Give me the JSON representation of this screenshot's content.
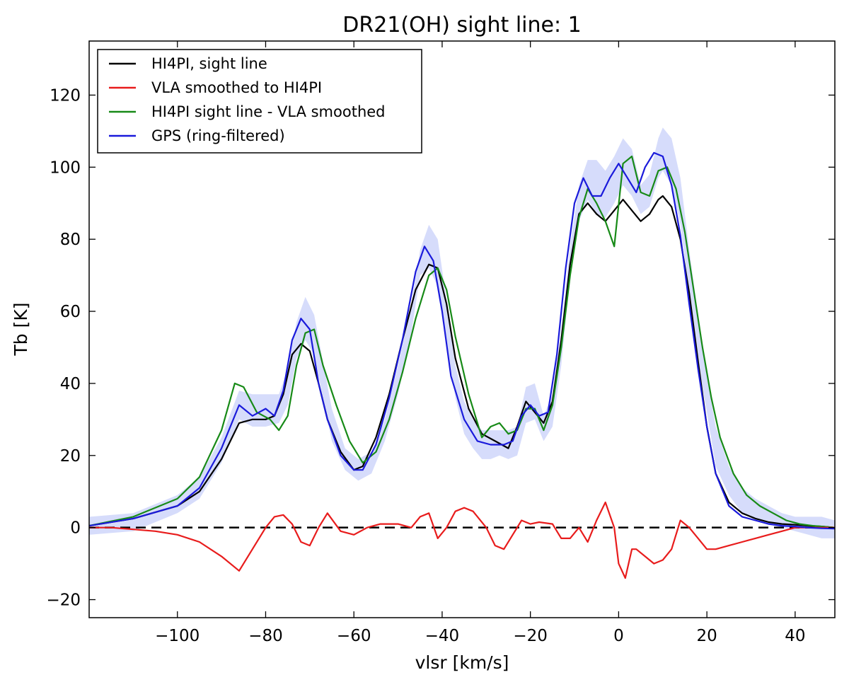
{
  "chart_data": {
    "type": "line",
    "title": "DR21(OH) sight line: 1",
    "xlabel": "vlsr [km/s]",
    "ylabel": "Tb [K]",
    "xlim": [
      -120,
      49
    ],
    "ylim": [
      -25,
      135
    ],
    "xticks": [
      -100,
      -80,
      -60,
      -40,
      -20,
      0,
      20,
      40
    ],
    "xtick_labels": [
      "−100",
      "−80",
      "−60",
      "−40",
      "−20",
      "0",
      "20",
      "40"
    ],
    "yticks": [
      -20,
      0,
      20,
      40,
      60,
      80,
      100,
      120
    ],
    "ytick_labels": [
      "−20",
      "0",
      "20",
      "40",
      "60",
      "80",
      "100",
      "120"
    ],
    "legend_position": "top-left",
    "zero_line": {
      "y": 0,
      "style": "dashed",
      "color": "#000000"
    },
    "band": {
      "name": "GPS uncertainty",
      "color": "#d6dcfb",
      "x": [
        -120,
        -110,
        -100,
        -95,
        -90,
        -86,
        -83,
        -80,
        -77,
        -75,
        -73,
        -71,
        -69,
        -67,
        -65,
        -62,
        -59,
        -56,
        -53,
        -50,
        -47,
        -45,
        -43,
        -41,
        -39,
        -37,
        -35,
        -33,
        -31,
        -29,
        -27,
        -25,
        -23,
        -21,
        -19,
        -17,
        -15,
        -13,
        -11,
        -9,
        -7,
        -5,
        -3,
        -1,
        1,
        3,
        5,
        7,
        9,
        10,
        12,
        14,
        16,
        18,
        20,
        22,
        25,
        28,
        31,
        34,
        37,
        40,
        43,
        46,
        49
      ],
      "upper": [
        3,
        4,
        9,
        14,
        25,
        38,
        37,
        37,
        37,
        44,
        57,
        64,
        59,
        46,
        33,
        22,
        19,
        21,
        30,
        45,
        62,
        77,
        84,
        80,
        63,
        45,
        35,
        30,
        27,
        27,
        27,
        27,
        28,
        39,
        40,
        31,
        37,
        55,
        78,
        95,
        102,
        102,
        99,
        103,
        108,
        105,
        95,
        98,
        108,
        111,
        108,
        97,
        77,
        59,
        42,
        28,
        17,
        11,
        8,
        6,
        4,
        3,
        3,
        3,
        2
      ],
      "lower": [
        -2,
        -1,
        4,
        8,
        18,
        30,
        28,
        28,
        29,
        34,
        47,
        52,
        48,
        36,
        24,
        16,
        13,
        15,
        24,
        37,
        54,
        70,
        72,
        67,
        52,
        36,
        26,
        22,
        19,
        19,
        20,
        19,
        20,
        29,
        30,
        24,
        28,
        45,
        70,
        85,
        91,
        87,
        86,
        90,
        95,
        92,
        87,
        89,
        97,
        99,
        95,
        84,
        65,
        46,
        32,
        17,
        9,
        4,
        2,
        1,
        0,
        -1,
        -2,
        -3,
        -3
      ]
    },
    "series": [
      {
        "name": "HI4PI, sight line",
        "color": "#000000",
        "x": [
          -120,
          -110,
          -100,
          -95,
          -90,
          -86,
          -83,
          -80,
          -78,
          -76,
          -74,
          -72,
          -70,
          -68,
          -66,
          -63,
          -60,
          -58,
          -55,
          -52,
          -49,
          -46,
          -43,
          -41,
          -39,
          -37,
          -34,
          -31,
          -28,
          -25,
          -23,
          -21,
          -19,
          -17,
          -15,
          -13,
          -11,
          -9,
          -7,
          -5,
          -3,
          -1,
          1,
          3,
          5,
          7,
          9,
          10,
          12,
          14,
          16,
          18,
          20,
          22,
          25,
          28,
          31,
          34,
          37,
          40,
          43,
          46,
          49
        ],
        "values": [
          0.5,
          2.5,
          6,
          10,
          19,
          29,
          30,
          30,
          31,
          37,
          48,
          51,
          49,
          40,
          30,
          21,
          16,
          17,
          25,
          37,
          52,
          66,
          73,
          72,
          62,
          47,
          33,
          26,
          24,
          22,
          28,
          35,
          32,
          29,
          35,
          52,
          73,
          87,
          90,
          87,
          85,
          88,
          91,
          88,
          85,
          87,
          91,
          92,
          89,
          80,
          65,
          46,
          28,
          15,
          7,
          4,
          2.5,
          1.5,
          1,
          0.8,
          0.5,
          0.3,
          0
        ]
      },
      {
        "name": "VLA smoothed to HI4PI",
        "color": "#e81c1c",
        "x": [
          -120,
          -115,
          -110,
          -105,
          -100,
          -95,
          -90,
          -86,
          -83,
          -80,
          -78,
          -76,
          -74,
          -72,
          -70,
          -68,
          -66,
          -63,
          -60,
          -57,
          -54,
          -50,
          -47,
          -45,
          -43,
          -41,
          -39,
          -37,
          -35,
          -33,
          -30,
          -28,
          -26,
          -24,
          -22,
          -20,
          -18,
          -15,
          -13,
          -11,
          -9,
          -7,
          -5,
          -3,
          -1,
          0,
          1.5,
          3,
          4,
          6,
          8,
          10,
          12,
          14,
          16,
          18,
          20,
          22,
          25,
          28,
          31,
          34,
          37,
          40,
          43,
          46,
          49
        ],
        "values": [
          0,
          0,
          -0.5,
          -1,
          -2,
          -4,
          -8,
          -12,
          -6,
          0,
          3,
          3.5,
          1,
          -4,
          -5,
          0,
          4,
          -1,
          -2,
          0,
          1,
          1,
          0,
          3,
          4,
          -3,
          0,
          4.5,
          5.5,
          4.5,
          0,
          -5,
          -6,
          -2,
          2,
          1,
          1.5,
          1,
          -3,
          -3,
          0,
          -4,
          2,
          7,
          0,
          -10,
          -14,
          -6,
          -6,
          -8,
          -10,
          -9,
          -6,
          2,
          0,
          -3,
          -6,
          -6,
          -5,
          -4,
          -3,
          -2,
          -1,
          0,
          0,
          0,
          0
        ]
      },
      {
        "name": "HI4PI sight line - VLA smoothed",
        "color": "#178a17",
        "x": [
          -120,
          -110,
          -100,
          -95,
          -90,
          -87,
          -85,
          -82,
          -79,
          -77,
          -75,
          -73,
          -71,
          -69,
          -67,
          -64,
          -61,
          -58,
          -55,
          -52,
          -49,
          -46,
          -43,
          -41,
          -39,
          -37,
          -34,
          -31,
          -29,
          -27,
          -25,
          -23,
          -21,
          -19,
          -17,
          -15,
          -13,
          -11,
          -9,
          -7,
          -5,
          -3,
          -1,
          1,
          3,
          5,
          7,
          9,
          11,
          13,
          15,
          17,
          19,
          21,
          23,
          26,
          29,
          32,
          35,
          38,
          41,
          44,
          47,
          49
        ],
        "values": [
          0.5,
          3,
          8,
          14,
          27,
          40,
          39,
          32,
          30,
          27,
          31,
          45,
          54,
          55,
          45,
          34,
          24,
          18,
          21,
          30,
          43,
          58,
          70,
          72,
          66,
          53,
          37,
          25,
          28,
          29,
          26,
          27,
          33,
          33,
          27,
          34,
          50,
          70,
          86,
          94,
          90,
          85,
          78,
          101,
          103,
          93,
          92,
          99,
          100,
          94,
          82,
          66,
          50,
          36,
          25,
          15,
          9,
          6,
          4,
          2,
          1,
          0.5,
          0.2,
          0
        ]
      },
      {
        "name": "GPS (ring-filtered)",
        "color": "#1a1adb",
        "x": [
          -120,
          -110,
          -100,
          -95,
          -90,
          -86,
          -83,
          -80,
          -78,
          -76,
          -74,
          -72,
          -70,
          -68,
          -66,
          -63,
          -60,
          -58,
          -55,
          -52,
          -49,
          -46,
          -44,
          -42,
          -40,
          -38,
          -35,
          -32,
          -29,
          -26,
          -24,
          -22,
          -20,
          -18,
          -16,
          -14,
          -12,
          -10,
          -8,
          -6,
          -4,
          -2,
          0,
          2,
          4,
          6,
          8,
          10,
          12,
          14,
          16,
          18,
          20,
          22,
          25,
          28,
          31,
          34,
          37,
          40,
          43,
          46,
          49
        ],
        "values": [
          0.5,
          2.5,
          6,
          11,
          22,
          34,
          31,
          33,
          31,
          38,
          52,
          58,
          55,
          40,
          30,
          20,
          16,
          16,
          23,
          36,
          52,
          71,
          78,
          74,
          60,
          42,
          30,
          24,
          23,
          23,
          24,
          31,
          34,
          31,
          32,
          48,
          72,
          90,
          97,
          92,
          92,
          97,
          101,
          97,
          93,
          100,
          104,
          103,
          95,
          81,
          62,
          44,
          28,
          15,
          6,
          3,
          2,
          1,
          0.5,
          0.3,
          0,
          -0.2,
          -0.3
        ]
      }
    ]
  }
}
